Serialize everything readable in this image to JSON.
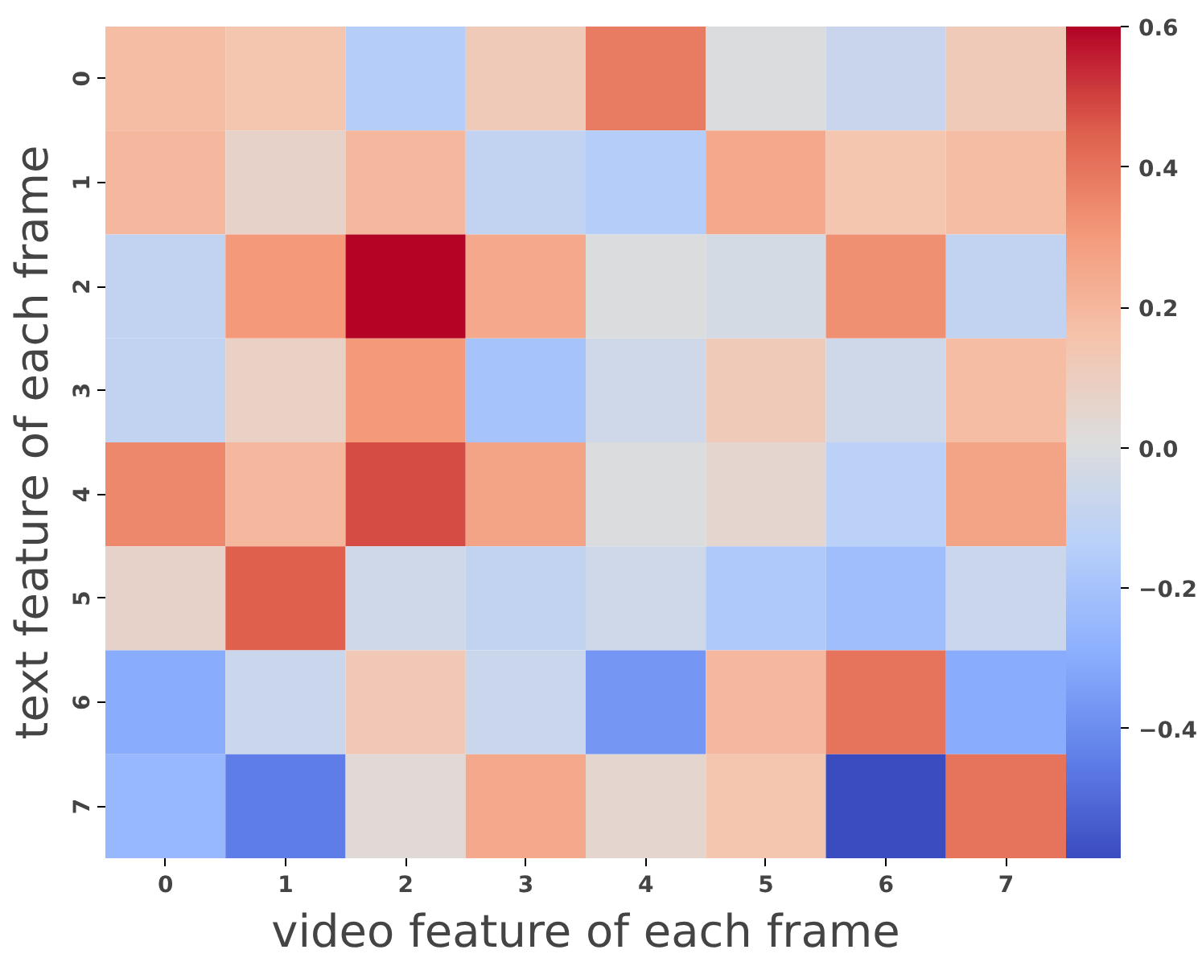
{
  "chart_data": {
    "type": "heatmap",
    "xlabel": "video feature of each frame",
    "ylabel": "text feature of each frame",
    "categories": [
      "0",
      "1",
      "2",
      "3",
      "4",
      "5",
      "6",
      "7"
    ],
    "y_categories": [
      "0",
      "1",
      "2",
      "3",
      "4",
      "5",
      "6",
      "7"
    ],
    "cells": [
      [
        0.18,
        0.15,
        -0.15,
        0.12,
        0.38,
        0.0,
        -0.08,
        0.12
      ],
      [
        0.2,
        0.07,
        0.2,
        -0.1,
        -0.15,
        0.25,
        0.15,
        0.18
      ],
      [
        -0.1,
        0.3,
        0.6,
        0.25,
        0.0,
        -0.03,
        0.33,
        -0.1
      ],
      [
        -0.1,
        0.08,
        0.3,
        -0.2,
        -0.05,
        0.12,
        -0.05,
        0.18
      ],
      [
        0.35,
        0.2,
        0.48,
        0.27,
        0.0,
        0.05,
        -0.13,
        0.27
      ],
      [
        0.07,
        0.45,
        -0.05,
        -0.1,
        -0.05,
        -0.17,
        -0.22,
        -0.07
      ],
      [
        -0.3,
        -0.07,
        0.13,
        -0.07,
        -0.37,
        0.2,
        0.4,
        -0.3
      ],
      [
        -0.25,
        -0.45,
        0.03,
        0.25,
        0.05,
        0.15,
        -0.585,
        0.4
      ]
    ],
    "clim": [
      -0.585,
      0.6
    ],
    "cticks": [
      {
        "value": -0.4,
        "label": "−0.4"
      },
      {
        "value": -0.2,
        "label": "−0.2"
      },
      {
        "value": 0.0,
        "label": "0.0"
      },
      {
        "value": 0.2,
        "label": "0.2"
      },
      {
        "value": 0.4,
        "label": "0.4"
      },
      {
        "value": 0.6,
        "label": "0.6"
      }
    ]
  }
}
